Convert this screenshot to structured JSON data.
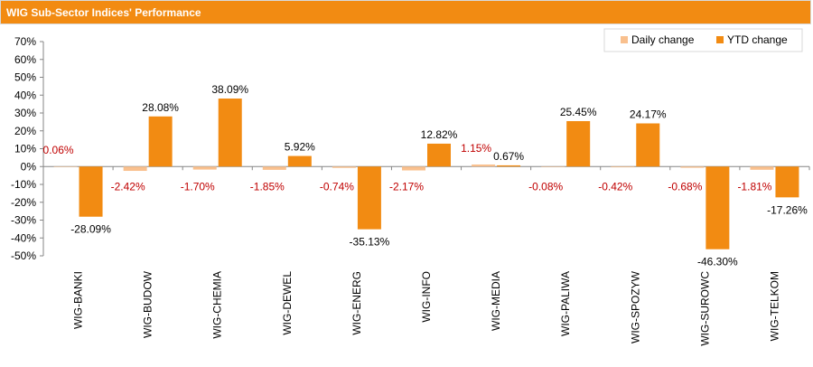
{
  "header": {
    "title": "WIG Sub-Sector Indices' Performance"
  },
  "colors": {
    "header_bg": "#f28b12",
    "daily": "#f9c08e",
    "ytd": "#f28b12",
    "daily_label": "#c00000"
  },
  "chart_data": {
    "type": "bar",
    "title": "WIG Sub-Sector Indices' Performance",
    "xlabel": "",
    "ylabel": "",
    "ylim": [
      -50,
      70
    ],
    "yticks": [
      "70%",
      "60%",
      "50%",
      "40%",
      "30%",
      "20%",
      "10%",
      "0%",
      "-10%",
      "-20%",
      "-30%",
      "-40%",
      "-50%"
    ],
    "ytick_values": [
      70,
      60,
      50,
      40,
      30,
      20,
      10,
      0,
      -10,
      -20,
      -30,
      -40,
      -50
    ],
    "categories": [
      "WIG-BANKI",
      "WIG-BUDOW",
      "WIG-CHEMIA",
      "WIG-DEWEL",
      "WIG-ENERG",
      "WIG-INFO",
      "WIG-MEDIA",
      "WIG-PALIWA",
      "WIG-SPOZYW",
      "WIG-SUROWC",
      "WIG-TELKOM"
    ],
    "series": [
      {
        "name": "Daily change",
        "values": [
          0.06,
          -2.42,
          -1.7,
          -1.85,
          -0.74,
          -2.17,
          1.15,
          -0.08,
          -0.42,
          -0.68,
          -1.81
        ],
        "labels": [
          "0.06%",
          "-2.42%",
          "-1.70%",
          "-1.85%",
          "-0.74%",
          "-2.17%",
          "1.15%",
          "-0.08%",
          "-0.42%",
          "-0.68%",
          "-1.81%"
        ]
      },
      {
        "name": "YTD change",
        "values": [
          -28.09,
          28.08,
          38.09,
          5.92,
          -35.13,
          12.82,
          0.67,
          25.45,
          24.17,
          -46.3,
          -17.26
        ],
        "labels": [
          "-28.09%",
          "28.08%",
          "38.09%",
          "5.92%",
          "-35.13%",
          "12.82%",
          "0.67%",
          "25.45%",
          "24.17%",
          "-46.30%",
          "-17.26%"
        ]
      }
    ],
    "legend": "top-right",
    "grid": false
  }
}
